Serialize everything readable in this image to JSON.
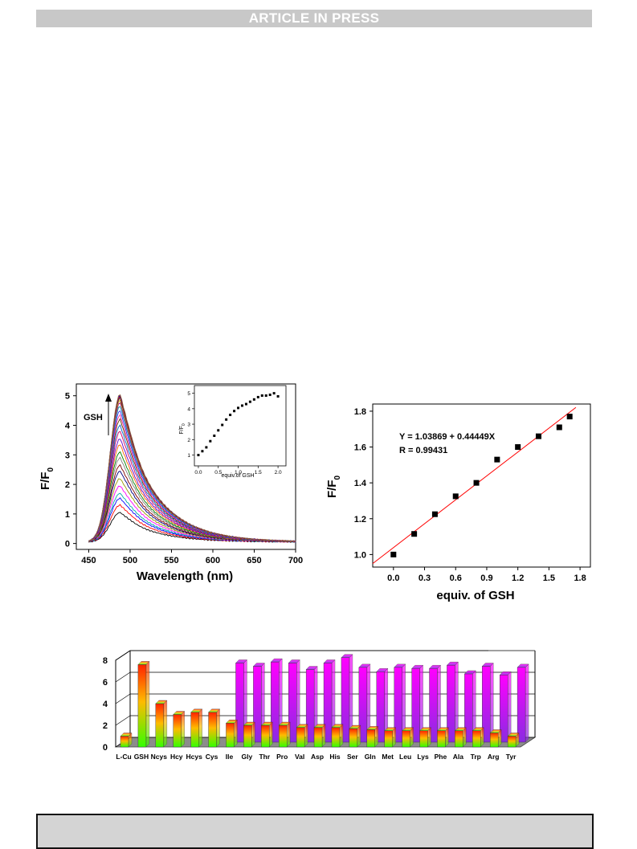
{
  "header": {
    "banner": "ARTICLE IN PRESS"
  },
  "colors": {
    "banner_bg": "#c8c8c8",
    "footer_bg": "#d4d4d4"
  },
  "chart_data": [
    {
      "type": "line",
      "xlabel": "Wavelength (nm)",
      "ylabel": "F/F",
      "ylabel_sub": "0",
      "xlim": [
        435,
        700
      ],
      "ylim": [
        -0.2,
        5.4
      ],
      "xticks": [
        "450",
        "500",
        "550",
        "600",
        "650",
        "700"
      ],
      "yticks": [
        "0",
        "1",
        "2",
        "3",
        "4",
        "5"
      ],
      "arrow_label": "GSH",
      "peak_wavelength": 488,
      "series_peaks": [
        1.0,
        1.25,
        1.48,
        1.65,
        1.9,
        2.15,
        2.4,
        2.6,
        2.85,
        3.05,
        3.3,
        3.5,
        3.75,
        3.95,
        4.15,
        4.3,
        4.45,
        4.6,
        4.72,
        4.8,
        4.88,
        4.93,
        4.97,
        5.0
      ],
      "series_colors": [
        "#000000",
        "#ff0000",
        "#0000ff",
        "#00aaaa",
        "#ff00ff",
        "#999900",
        "#000080",
        "#800000",
        "#808080",
        "#008000",
        "#ff6600",
        "#6600cc",
        "#cc0066",
        "#0066cc",
        "#663300",
        "#ff3399",
        "#3333ff",
        "#009999",
        "#990099",
        "#cc9900",
        "#333333",
        "#cc0000",
        "#0000cc",
        "#996633"
      ],
      "inset": {
        "xlabel": "equiv.of GSH",
        "ylabel": "F/F",
        "ylabel_sub": "0",
        "xlim": [
          -0.1,
          2.2
        ],
        "ylim": [
          0.3,
          5.5
        ],
        "xticks": [
          "0.0",
          "0.5",
          "1.0",
          "1.5",
          "2.0"
        ],
        "yticks": [
          "1",
          "2",
          "3",
          "4",
          "5"
        ],
        "x": [
          0.0,
          0.1,
          0.2,
          0.3,
          0.4,
          0.5,
          0.6,
          0.7,
          0.8,
          0.9,
          1.0,
          1.1,
          1.2,
          1.3,
          1.4,
          1.5,
          1.6,
          1.7,
          1.8,
          1.9,
          2.0
        ],
        "y": [
          1.0,
          1.25,
          1.5,
          1.9,
          2.25,
          2.6,
          2.95,
          3.3,
          3.6,
          3.85,
          4.05,
          4.2,
          4.3,
          4.45,
          4.6,
          4.75,
          4.85,
          4.85,
          4.9,
          5.0,
          4.8
        ]
      }
    },
    {
      "type": "scatter",
      "xlabel": "equiv. of GSH",
      "ylabel": "F/F",
      "ylabel_sub": "0",
      "xlim": [
        -0.2,
        1.9
      ],
      "ylim": [
        0.93,
        1.84
      ],
      "xticks": [
        "0.0",
        "0.3",
        "0.6",
        "0.9",
        "1.2",
        "1.5",
        "1.8"
      ],
      "yticks": [
        "1.0",
        "1.2",
        "1.4",
        "1.6",
        "1.8"
      ],
      "x": [
        0.0,
        0.2,
        0.4,
        0.6,
        0.8,
        1.0,
        1.2,
        1.4,
        1.6,
        1.7
      ],
      "y": [
        1.0,
        1.115,
        1.225,
        1.325,
        1.4,
        1.53,
        1.6,
        1.66,
        1.71,
        1.77
      ],
      "fit": {
        "intercept": 1.03869,
        "slope": 0.44449,
        "color": "#ff0000"
      },
      "annotations": [
        "Y = 1.03869 + 0.44449X",
        "R =  0.99431"
      ]
    },
    {
      "type": "bar",
      "categories": [
        "L-Cu",
        "GSH",
        "Ncys",
        "Hcy",
        "Hcys",
        "Cys",
        "Ile",
        "Gly",
        "Thr",
        "Pro",
        "Val",
        "Asp",
        "His",
        "Ser",
        "Gln",
        "Met",
        "Leu",
        "Lys",
        "Phe",
        "Ala",
        "Trp",
        "Arg",
        "Tyr"
      ],
      "series": [
        {
          "values": [
            1.0,
            7.6,
            4.0,
            3.0,
            3.2,
            3.2,
            2.2,
            2.0,
            2.0,
            2.0,
            1.8,
            1.8,
            1.8,
            1.7,
            1.6,
            1.5,
            1.5,
            1.5,
            1.5,
            1.5,
            1.5,
            1.3,
            1.0
          ]
        },
        {
          "values": [
            null,
            null,
            null,
            null,
            null,
            null,
            7.3,
            7.0,
            7.4,
            7.3,
            6.7,
            7.3,
            7.8,
            6.9,
            6.5,
            6.9,
            6.8,
            6.8,
            7.1,
            6.3,
            7.0,
            6.2,
            6.9
          ]
        }
      ],
      "yticks": [
        "0",
        "2",
        "4",
        "6",
        "8"
      ],
      "ylim": [
        0,
        8
      ],
      "colors": {
        "front_top": "#ff2200",
        "front_bottom": "#33ff00",
        "back_top": "#ff00ff",
        "back_bottom": "#8a2be2",
        "floor": "#8c8c8c"
      }
    }
  ]
}
